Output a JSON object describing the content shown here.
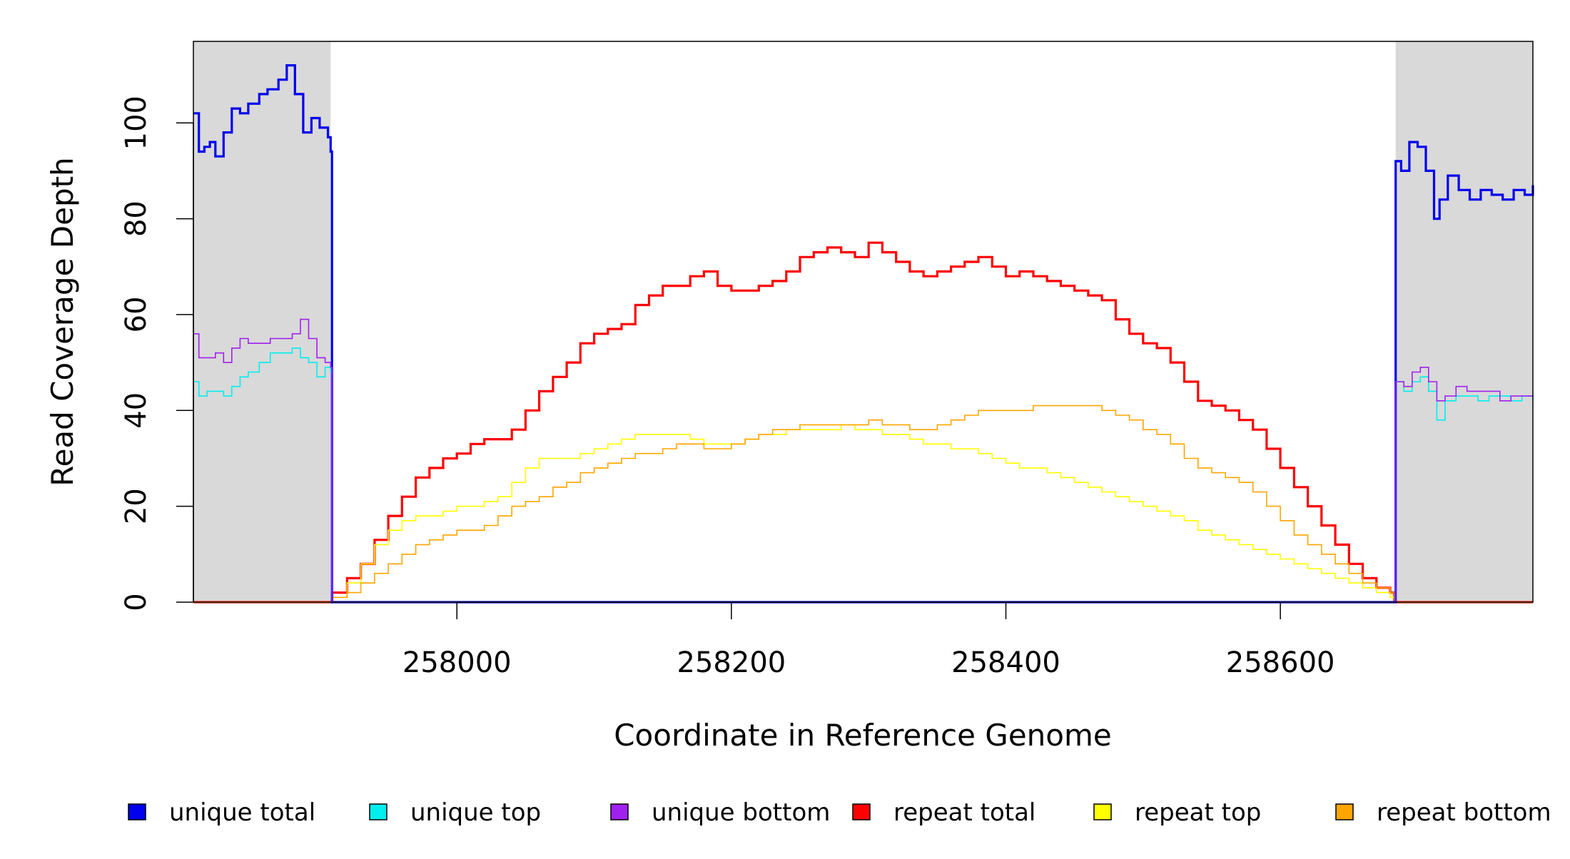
{
  "chart_data": {
    "type": "line",
    "title": "",
    "xlabel": "Coordinate in Reference Genome",
    "ylabel": "Read Coverage Depth",
    "xlim": [
      257808,
      258784
    ],
    "ylim": [
      0,
      117
    ],
    "x_ticks": [
      258000,
      258200,
      258400,
      258600
    ],
    "y_ticks": [
      0,
      20,
      40,
      60,
      80,
      100
    ],
    "grid": false,
    "legend_position": "bottom",
    "shaded_regions": [
      [
        257808,
        257908
      ],
      [
        258684,
        258784
      ]
    ],
    "series": [
      {
        "name": "unique total",
        "color": "#0000ee",
        "x": [
          257808,
          257812,
          257816,
          257820,
          257824,
          257830,
          257836,
          257842,
          257848,
          257856,
          257862,
          257870,
          257876,
          257882,
          257888,
          257894,
          257900,
          257906,
          257908,
          257909,
          258683,
          258684,
          258688,
          258694,
          258700,
          258706,
          258712,
          258716,
          258722,
          258730,
          258738,
          258746,
          258754,
          258762,
          258770,
          258778,
          258784
        ],
        "values": [
          102,
          94,
          95,
          96,
          93,
          98,
          103,
          102,
          104,
          106,
          107,
          109,
          112,
          106,
          98,
          101,
          99,
          97,
          94,
          0,
          0,
          92,
          90,
          96,
          95,
          90,
          80,
          84,
          89,
          86,
          84,
          86,
          85,
          84,
          86,
          85,
          87
        ]
      },
      {
        "name": "unique top",
        "color": "#00eeee",
        "x": [
          257808,
          257812,
          257818,
          257824,
          257830,
          257836,
          257842,
          257848,
          257856,
          257864,
          257872,
          257880,
          257886,
          257892,
          257898,
          257904,
          257908,
          257909,
          258683,
          258684,
          258690,
          258696,
          258702,
          258708,
          258714,
          258720,
          258728,
          258736,
          258744,
          258752,
          258760,
          258768,
          258776,
          258784
        ],
        "values": [
          46,
          43,
          44,
          44,
          43,
          45,
          47,
          48,
          50,
          52,
          52,
          53,
          51,
          50,
          47,
          49,
          48,
          0,
          0,
          46,
          44,
          46,
          47,
          44,
          38,
          42,
          43,
          43,
          42,
          43,
          43,
          42,
          43,
          42
        ]
      },
      {
        "name": "unique bottom",
        "color": "#a020f0",
        "x": [
          257808,
          257812,
          257818,
          257824,
          257830,
          257836,
          257842,
          257848,
          257856,
          257864,
          257872,
          257880,
          257886,
          257892,
          257898,
          257904,
          257908,
          257909,
          258683,
          258684,
          258690,
          258696,
          258702,
          258708,
          258714,
          258720,
          258728,
          258736,
          258744,
          258752,
          258760,
          258768,
          258776,
          258784
        ],
        "values": [
          56,
          51,
          51,
          52,
          50,
          53,
          55,
          54,
          54,
          55,
          55,
          56,
          59,
          55,
          51,
          50,
          49,
          0,
          0,
          46,
          45,
          48,
          49,
          46,
          42,
          43,
          45,
          44,
          44,
          44,
          42,
          43,
          43,
          43
        ]
      },
      {
        "name": "repeat total",
        "color": "#ff0000",
        "x": [
          257808,
          257908,
          257909,
          257920,
          257930,
          257940,
          257950,
          257960,
          257970,
          257980,
          257990,
          258000,
          258010,
          258020,
          258030,
          258040,
          258050,
          258060,
          258070,
          258080,
          258090,
          258100,
          258110,
          258120,
          258130,
          258140,
          258150,
          258160,
          258170,
          258180,
          258190,
          258200,
          258210,
          258220,
          258230,
          258240,
          258250,
          258260,
          258270,
          258280,
          258290,
          258300,
          258310,
          258320,
          258330,
          258340,
          258350,
          258360,
          258370,
          258380,
          258390,
          258400,
          258410,
          258420,
          258430,
          258440,
          258450,
          258460,
          258470,
          258480,
          258490,
          258500,
          258510,
          258520,
          258530,
          258540,
          258550,
          258560,
          258570,
          258580,
          258590,
          258600,
          258610,
          258620,
          258630,
          258640,
          258650,
          258660,
          258670,
          258680,
          258683,
          258784
        ],
        "values": [
          0,
          0,
          2,
          5,
          8,
          13,
          18,
          22,
          26,
          28,
          30,
          31,
          33,
          34,
          34,
          36,
          40,
          44,
          47,
          50,
          54,
          56,
          57,
          58,
          62,
          64,
          66,
          66,
          68,
          69,
          66,
          65,
          65,
          66,
          67,
          69,
          72,
          73,
          74,
          73,
          72,
          75,
          73,
          71,
          69,
          68,
          69,
          70,
          71,
          72,
          70,
          68,
          69,
          68,
          67,
          66,
          65,
          64,
          63,
          59,
          56,
          54,
          53,
          50,
          46,
          42,
          41,
          40,
          38,
          36,
          32,
          28,
          24,
          20,
          16,
          12,
          8,
          5,
          3,
          2,
          0,
          0
        ]
      },
      {
        "name": "repeat top",
        "color": "#ffff00",
        "x": [
          257808,
          257908,
          257909,
          257920,
          257930,
          257940,
          257950,
          257960,
          257970,
          257980,
          257990,
          258000,
          258010,
          258020,
          258030,
          258040,
          258050,
          258060,
          258070,
          258080,
          258090,
          258100,
          258110,
          258120,
          258130,
          258140,
          258150,
          258160,
          258170,
          258180,
          258190,
          258200,
          258210,
          258220,
          258230,
          258240,
          258250,
          258260,
          258270,
          258280,
          258290,
          258300,
          258310,
          258320,
          258330,
          258340,
          258350,
          258360,
          258370,
          258380,
          258390,
          258400,
          258410,
          258420,
          258430,
          258440,
          258450,
          258460,
          258470,
          258480,
          258490,
          258500,
          258510,
          258520,
          258530,
          258540,
          258550,
          258560,
          258570,
          258580,
          258590,
          258600,
          258610,
          258620,
          258630,
          258640,
          258650,
          258660,
          258670,
          258680,
          258683,
          258784
        ],
        "values": [
          0,
          0,
          1,
          4,
          8,
          12,
          15,
          17,
          18,
          18,
          19,
          20,
          20,
          21,
          22,
          25,
          28,
          30,
          30,
          30,
          31,
          32,
          33,
          34,
          35,
          35,
          35,
          35,
          34,
          33,
          33,
          33,
          34,
          35,
          35,
          36,
          36,
          36,
          36,
          37,
          36,
          36,
          35,
          35,
          34,
          33,
          33,
          32,
          32,
          31,
          30,
          29,
          28,
          28,
          27,
          26,
          25,
          24,
          23,
          22,
          21,
          20,
          19,
          18,
          17,
          15,
          14,
          13,
          12,
          11,
          10,
          9,
          8,
          7,
          6,
          5,
          4,
          3,
          2,
          1,
          0,
          0
        ]
      },
      {
        "name": "repeat bottom",
        "color": "#ffa500",
        "x": [
          257808,
          257908,
          257909,
          257920,
          257930,
          257940,
          257950,
          257960,
          257970,
          257980,
          257990,
          258000,
          258010,
          258020,
          258030,
          258040,
          258050,
          258060,
          258070,
          258080,
          258090,
          258100,
          258110,
          258120,
          258130,
          258140,
          258150,
          258160,
          258170,
          258180,
          258190,
          258200,
          258210,
          258220,
          258230,
          258240,
          258250,
          258260,
          258270,
          258280,
          258290,
          258300,
          258310,
          258320,
          258330,
          258340,
          258350,
          258360,
          258370,
          258380,
          258390,
          258400,
          258410,
          258420,
          258430,
          258440,
          258450,
          258460,
          258470,
          258480,
          258490,
          258500,
          258510,
          258520,
          258530,
          258540,
          258550,
          258560,
          258570,
          258580,
          258590,
          258600,
          258610,
          258620,
          258630,
          258640,
          258650,
          258660,
          258670,
          258680,
          258683,
          258784
        ],
        "values": [
          0,
          0,
          1,
          2,
          4,
          6,
          8,
          10,
          12,
          13,
          14,
          15,
          15,
          16,
          18,
          20,
          21,
          22,
          24,
          25,
          27,
          28,
          29,
          30,
          31,
          31,
          32,
          33,
          33,
          32,
          32,
          33,
          34,
          35,
          36,
          36,
          37,
          37,
          37,
          37,
          37,
          38,
          37,
          37,
          36,
          36,
          37,
          38,
          39,
          40,
          40,
          40,
          40,
          41,
          41,
          41,
          41,
          41,
          40,
          39,
          38,
          36,
          35,
          33,
          30,
          28,
          27,
          26,
          25,
          23,
          20,
          17,
          14,
          12,
          10,
          8,
          6,
          4,
          3,
          2,
          0,
          0
        ]
      }
    ]
  }
}
